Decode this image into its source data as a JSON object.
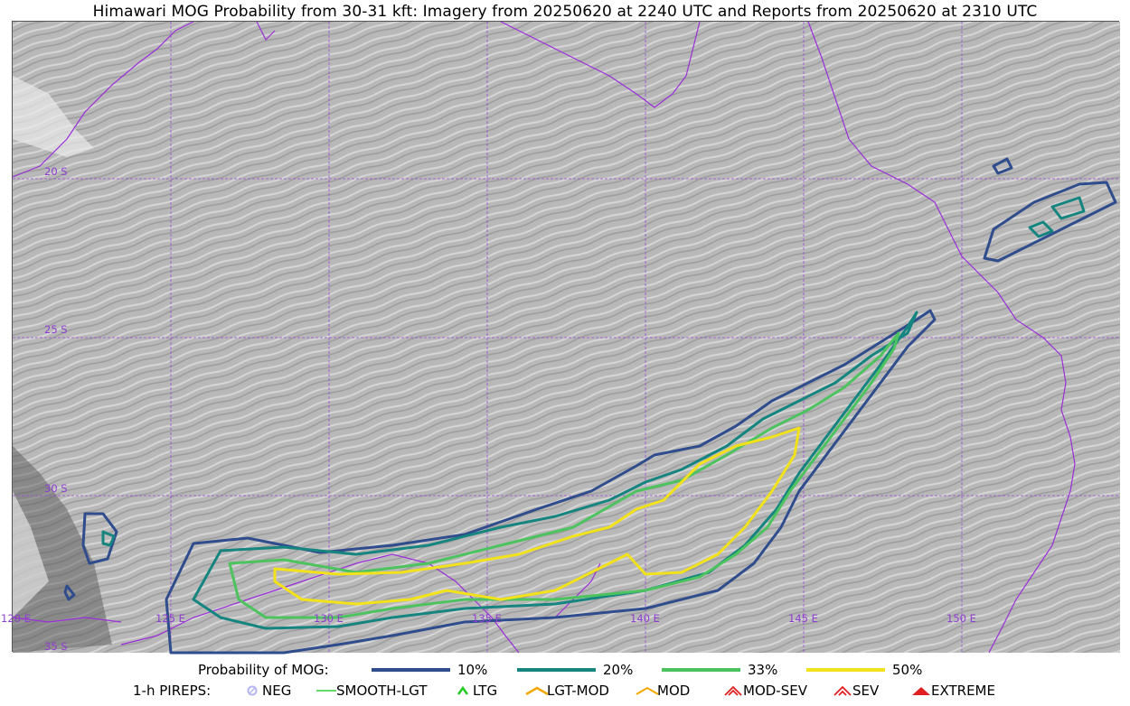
{
  "title": "Himawari MOG Probability from 30-31 kft: Imagery from 20250620 at 2240 UTC and Reports from 20250620 at 2310 UTC",
  "map": {
    "lat_labels": [
      "20 S",
      "25 S",
      "30 S",
      "35 S"
    ],
    "lon_labels": [
      "120 E",
      "125 E",
      "130 E",
      "135 E",
      "140 E",
      "145 E",
      "150 E"
    ],
    "colors": {
      "grid": "#9b4bd6",
      "coast": "#9a2fd8",
      "c10": "#2f4c8c",
      "c20": "#16857f",
      "c33": "#4cc35e",
      "c50": "#f2e21c"
    }
  },
  "legend": {
    "probability_label": "Probability of MOG:",
    "levels": [
      {
        "label": "10%",
        "color": "#2f4c8c"
      },
      {
        "label": "20%",
        "color": "#16857f"
      },
      {
        "label": "33%",
        "color": "#4cc35e"
      },
      {
        "label": "50%",
        "color": "#f2e21c"
      }
    ],
    "pireps_label": "1-h PIREPS:",
    "pireps": [
      {
        "label": "NEG",
        "icon": "neg-icon",
        "color": "#b7b7f0"
      },
      {
        "label": "SMOOTH-LGT",
        "icon": "smooth-lgt-icon",
        "color": "#33cc33"
      },
      {
        "label": "LTG",
        "icon": "ltg-icon",
        "color": "#22cc22"
      },
      {
        "label": "LGT-MOD",
        "icon": "lgt-mod-icon",
        "color": "#f2a800"
      },
      {
        "label": "MOD",
        "icon": "mod-icon",
        "color": "#f2a800"
      },
      {
        "label": "MOD-SEV",
        "icon": "mod-sev-icon",
        "color": "#e02020"
      },
      {
        "label": "SEV",
        "icon": "sev-icon",
        "color": "#e02020"
      },
      {
        "label": "EXTREME",
        "icon": "extreme-icon",
        "color": "#e02020"
      }
    ]
  }
}
